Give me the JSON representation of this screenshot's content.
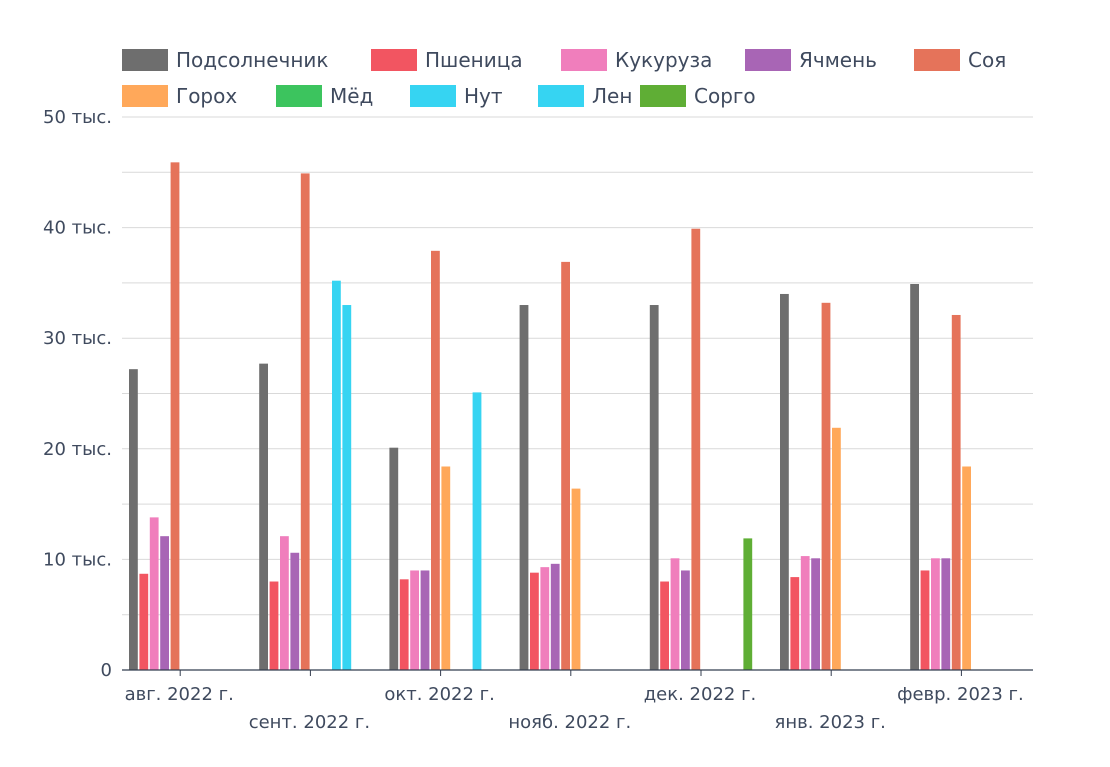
{
  "chart_data": {
    "type": "bar",
    "title": "",
    "xlabel": "",
    "ylabel": "",
    "ylim": [
      0,
      50000
    ],
    "y_ticks": [
      0,
      10000,
      20000,
      30000,
      40000,
      50000
    ],
    "y_tick_labels": [
      "0",
      "10 тыс.",
      "20 тыс.",
      "30 тыс.",
      "40 тыс.",
      "50 тыс."
    ],
    "grid": true,
    "legend_position": "top",
    "categories": [
      "авг. 2022 г.",
      "сент. 2022 г.",
      "окт. 2022 г.",
      "нояб. 2022 г.",
      "дек. 2022 г.",
      "янв. 2023 г.",
      "февр. 2023 г."
    ],
    "series": [
      {
        "name": "Подсолнечник",
        "color": "#6e6e6e",
        "values": [
          27200,
          27700,
          20100,
          33000,
          33000,
          34000,
          34900
        ]
      },
      {
        "name": "Пшеница",
        "color": "#f25561",
        "values": [
          8700,
          8000,
          8200,
          8800,
          8000,
          8400,
          9000
        ]
      },
      {
        "name": "Кукуруза",
        "color": "#f07ebc",
        "values": [
          13800,
          12100,
          9000,
          9300,
          10100,
          10300,
          10100
        ]
      },
      {
        "name": "Ячмень",
        "color": "#a865b5",
        "values": [
          12100,
          10600,
          9000,
          9600,
          9000,
          10100,
          10100
        ]
      },
      {
        "name": "Соя",
        "color": "#e5735a",
        "values": [
          45900,
          44900,
          37900,
          36900,
          39900,
          33200,
          32100
        ]
      },
      {
        "name": "Горох",
        "color": "#ffa85a",
        "values": [
          null,
          null,
          18400,
          16400,
          null,
          21900,
          18400
        ]
      },
      {
        "name": "Мёд",
        "color": "#3cc45e",
        "values": [
          null,
          null,
          null,
          null,
          null,
          null,
          null
        ]
      },
      {
        "name": "Нут",
        "color": "#36d4f2",
        "values": [
          null,
          35200,
          null,
          null,
          null,
          null,
          null
        ]
      },
      {
        "name": "Лен",
        "color": "#36d4f2",
        "values": [
          null,
          33000,
          25100,
          null,
          null,
          null,
          null
        ]
      },
      {
        "name": "Сорго",
        "color": "#5fae35",
        "values": [
          null,
          null,
          null,
          null,
          11900,
          null,
          null
        ]
      }
    ]
  }
}
